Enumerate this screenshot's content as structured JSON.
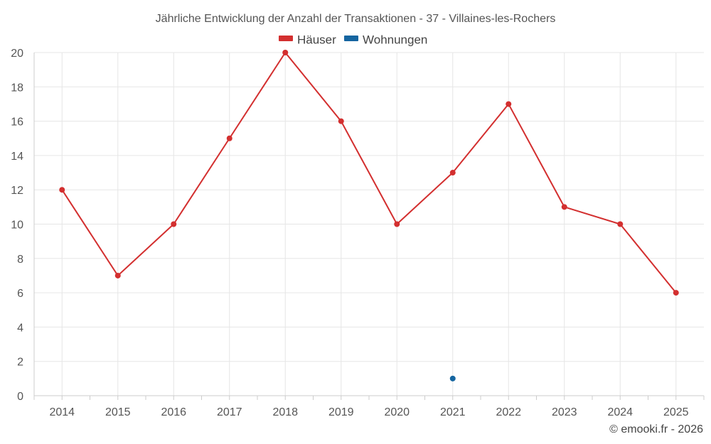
{
  "chart_data": {
    "type": "line",
    "title": "Jährliche Entwicklung der Anzahl der Transaktionen - 37 - Villaines-les-Rochers",
    "categories": [
      "2014",
      "2015",
      "2016",
      "2017",
      "2018",
      "2019",
      "2020",
      "2021",
      "2022",
      "2023",
      "2024",
      "2025"
    ],
    "series": [
      {
        "name": "Häuser",
        "color": "#d32f2f",
        "values": [
          12,
          7,
          10,
          15,
          20,
          16,
          10,
          13,
          17,
          11,
          10,
          6
        ]
      },
      {
        "name": "Wohnungen",
        "color": "#1565a0",
        "values": [
          null,
          null,
          null,
          null,
          null,
          null,
          null,
          1,
          null,
          null,
          null,
          null
        ]
      }
    ],
    "ylim": [
      0,
      20
    ],
    "yticks": [
      "0",
      "2",
      "4",
      "6",
      "8",
      "10",
      "12",
      "14",
      "16",
      "18",
      "20"
    ],
    "xlabel": "",
    "ylabel": "",
    "grid": true,
    "legend": "top-center"
  },
  "credit": "© emooki.fr - 2026"
}
